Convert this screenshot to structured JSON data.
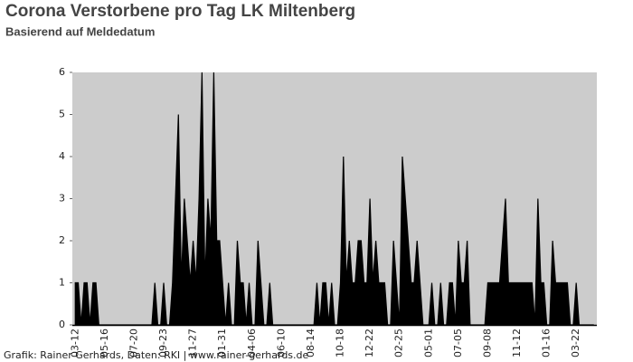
{
  "chart_data": {
    "type": "area",
    "title": "Corona Verstorbene pro Tag LK Miltenberg",
    "subtitle": "Basierend auf Meldedatum",
    "footer": "Grafik: Rainer Gerhards, Daten: RKI | www.rainer-gerhards.de",
    "categories": [
      "03-12",
      null,
      null,
      null,
      null,
      null,
      null,
      null,
      null,
      null,
      "05-16",
      null,
      null,
      null,
      null,
      null,
      null,
      null,
      null,
      null,
      "07-20",
      null,
      null,
      null,
      null,
      null,
      null,
      null,
      null,
      null,
      "09-23",
      null,
      null,
      null,
      null,
      null,
      null,
      null,
      null,
      null,
      "11-27",
      null,
      null,
      null,
      null,
      null,
      null,
      null,
      null,
      null,
      "01-31",
      null,
      null,
      null,
      null,
      null,
      null,
      null,
      null,
      null,
      "04-06",
      null,
      null,
      null,
      null,
      null,
      null,
      null,
      null,
      null,
      "06-10",
      null,
      null,
      null,
      null,
      null,
      null,
      null,
      null,
      null,
      "08-14",
      null,
      null,
      null,
      null,
      null,
      null,
      null,
      null,
      null,
      "10-18",
      null,
      null,
      null,
      null,
      null,
      null,
      null,
      null,
      null,
      "12-22",
      null,
      null,
      null,
      null,
      null,
      null,
      null,
      null,
      null,
      "02-25",
      null,
      null,
      null,
      null,
      null,
      null,
      null,
      null,
      null,
      "05-01",
      null,
      null,
      null,
      null,
      null,
      null,
      null,
      null,
      null,
      "07-05",
      null,
      null,
      null,
      null,
      null,
      null,
      null,
      null,
      null,
      "09-08",
      null,
      null,
      null,
      null,
      null,
      null,
      null,
      null,
      null,
      "11-12",
      null,
      null,
      null,
      null,
      null,
      null,
      null,
      null,
      null,
      "01-16",
      null,
      null,
      null,
      null,
      null,
      null,
      null,
      null,
      null,
      "03-22",
      null,
      null,
      null,
      null,
      null,
      null
    ],
    "values": [
      1,
      1,
      0,
      1,
      1,
      0,
      1,
      1,
      0,
      0,
      0,
      0,
      0,
      0,
      0,
      0,
      0,
      0,
      0,
      0,
      0,
      0,
      0,
      0,
      0,
      0,
      0,
      1,
      0,
      0,
      1,
      0,
      0,
      1,
      3,
      5,
      1,
      3,
      2,
      1,
      2,
      1,
      3,
      6,
      1,
      3,
      2,
      6,
      2,
      2,
      1,
      0,
      1,
      0,
      0,
      2,
      1,
      1,
      0,
      1,
      0,
      0,
      2,
      1,
      0,
      0,
      1,
      0,
      0,
      0,
      0,
      0,
      0,
      0,
      0,
      0,
      0,
      0,
      0,
      0,
      0,
      0,
      1,
      0,
      1,
      1,
      0,
      1,
      0,
      0,
      1,
      4,
      1,
      2,
      1,
      1,
      2,
      2,
      1,
      1,
      3,
      1,
      2,
      1,
      1,
      1,
      0,
      0,
      2,
      1,
      0,
      4,
      3,
      2,
      1,
      1,
      2,
      1,
      0,
      0,
      0,
      1,
      0,
      0,
      1,
      0,
      0,
      1,
      1,
      0,
      2,
      1,
      1,
      2,
      0,
      0,
      0,
      0,
      0,
      0,
      1,
      1,
      1,
      1,
      1,
      2,
      3,
      1,
      1,
      1,
      1,
      1,
      1,
      1,
      1,
      1,
      0,
      3,
      1,
      1,
      0,
      0,
      2,
      1,
      1,
      1,
      1,
      1,
      0,
      0,
      1,
      0,
      0,
      0,
      0,
      0,
      0
    ],
    "color": "#000000",
    "ylim": [
      0,
      6
    ],
    "yticks": [
      0,
      1,
      2,
      3,
      4,
      5,
      6
    ],
    "grid": false
  }
}
